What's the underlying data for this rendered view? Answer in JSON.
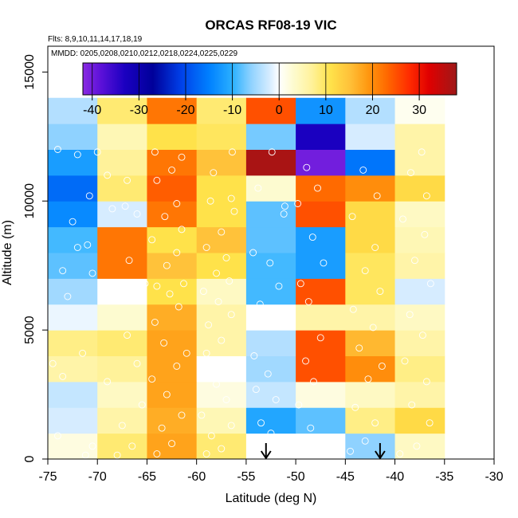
{
  "chart_data": {
    "type": "heatmap",
    "title": "ORCAS RF08-19 VIC",
    "subtitle_flights": "Flts: 8,9,10,11,14,17,18,19",
    "subtitle_dates": "MMDD: 0205,0208,0210,0212,0218,0224,0225,0229",
    "xlabel": "Latitude (deg N)",
    "ylabel": "Altitude (m)",
    "xlim": [
      -75,
      -30
    ],
    "ylim": [
      0,
      16000
    ],
    "x_ticks": [
      -75,
      -70,
      -65,
      -60,
      -55,
      -50,
      -45,
      -40,
      -35,
      -30
    ],
    "y_ticks": [
      0,
      5000,
      10000,
      15000
    ],
    "lat_bins": [
      -75,
      -70,
      -65,
      -60,
      -55,
      -50,
      -45,
      -40,
      -35
    ],
    "alt_bin_height": 1000,
    "grid": [
      [
        2,
        9,
        18,
        9,
        0,
        0,
        -6,
        4
      ],
      [
        -2,
        6,
        17,
        5,
        -11,
        -8,
        8,
        12
      ],
      [
        -3,
        4,
        18,
        2,
        -3,
        2,
        4,
        6
      ],
      [
        6,
        7,
        18,
        0,
        -5,
        25,
        20,
        8
      ],
      [
        8,
        9,
        18,
        6,
        -4,
        25,
        16,
        6
      ],
      [
        -1,
        3,
        17,
        6,
        0,
        6,
        6,
        4
      ],
      [
        -5,
        0,
        11,
        4,
        -9,
        25,
        10,
        -2
      ],
      [
        -8,
        22,
        15,
        11,
        -9,
        -12,
        10,
        6
      ],
      [
        -9,
        22,
        11,
        15,
        -8,
        -12,
        12,
        5
      ],
      [
        -14,
        -2,
        22,
        11,
        -8,
        25,
        12,
        4
      ],
      [
        -17,
        9,
        24,
        11,
        3,
        23,
        20,
        12
      ],
      [
        -12,
        7,
        22,
        15,
        37,
        -40,
        -16,
        6
      ],
      [
        -6,
        5,
        11,
        10,
        -7,
        -33,
        -2,
        6
      ],
      [
        -4,
        9,
        22,
        9,
        25,
        -13,
        -4,
        1
      ]
    ],
    "colorbar": {
      "min": -42,
      "max": 38,
      "ticks": [
        -40,
        -30,
        -20,
        -10,
        0,
        10,
        20,
        30
      ],
      "gridlines": [
        -40,
        -30,
        -20,
        -10,
        0,
        10,
        20,
        30
      ]
    },
    "colors": {
      "stops": [
        [
          -42,
          "#8a2be2"
        ],
        [
          -38,
          "#5a10d8"
        ],
        [
          -33,
          "#1a00c0"
        ],
        [
          -27,
          "#00009a"
        ],
        [
          -21,
          "#0040e8"
        ],
        [
          -15,
          "#0080ff"
        ],
        [
          -10,
          "#2ab0ff"
        ],
        [
          -6,
          "#8fd2ff"
        ],
        [
          -2,
          "#d6ecff"
        ],
        [
          0,
          "#ffffff"
        ],
        [
          3,
          "#fdfbd0"
        ],
        [
          7,
          "#fff29a"
        ],
        [
          11,
          "#ffe24a"
        ],
        [
          15,
          "#ffc23a"
        ],
        [
          19,
          "#ff9810"
        ],
        [
          23,
          "#ff6a00"
        ],
        [
          28,
          "#ff2a00"
        ],
        [
          32,
          "#e00000"
        ],
        [
          38,
          "#9e1818"
        ]
      ]
    },
    "markers": [
      {
        "lat": -53,
        "alt": 600,
        "label": "down-arrow"
      },
      {
        "lat": -41.5,
        "alt": 600,
        "label": "down-arrow"
      }
    ],
    "scatter_points": [
      [
        -74,
        900
      ],
      [
        -71.2,
        150
      ],
      [
        -70.5,
        500
      ],
      [
        -73.5,
        3200
      ],
      [
        -71.5,
        4100
      ],
      [
        -74.5,
        3700
      ],
      [
        -73,
        6300
      ],
      [
        -71,
        8300
      ],
      [
        -72,
        8200
      ],
      [
        -70.5,
        7200
      ],
      [
        -73.5,
        7300
      ],
      [
        -72.5,
        9200
      ],
      [
        -70.8,
        10200
      ],
      [
        -72,
        11800
      ],
      [
        -74,
        12000
      ],
      [
        -70,
        11900
      ],
      [
        -68,
        150
      ],
      [
        -66.5,
        500
      ],
      [
        -67.5,
        1300
      ],
      [
        -65.5,
        2100
      ],
      [
        -69,
        3000
      ],
      [
        -66,
        3700
      ],
      [
        -67,
        4800
      ],
      [
        -68.8,
        6700
      ],
      [
        -65.2,
        6800
      ],
      [
        -66.8,
        7700
      ],
      [
        -68.5,
        9700
      ],
      [
        -67.2,
        9800
      ],
      [
        -66,
        9500
      ],
      [
        -69,
        11000
      ],
      [
        -67,
        10800
      ],
      [
        -64,
        200
      ],
      [
        -62.5,
        600
      ],
      [
        -63.5,
        1200
      ],
      [
        -61.5,
        1700
      ],
      [
        -63,
        2500
      ],
      [
        -64.5,
        3100
      ],
      [
        -62,
        3600
      ],
      [
        -61,
        4100
      ],
      [
        -63.3,
        4500
      ],
      [
        -64.2,
        5300
      ],
      [
        -61.8,
        5900
      ],
      [
        -62.7,
        6400
      ],
      [
        -64,
        6700
      ],
      [
        -61.3,
        6800
      ],
      [
        -63,
        7500
      ],
      [
        -62,
        8000
      ],
      [
        -64.5,
        8500
      ],
      [
        -61.5,
        8900
      ],
      [
        -63.2,
        9400
      ],
      [
        -62,
        9900
      ],
      [
        -64,
        10800
      ],
      [
        -62.5,
        11200
      ],
      [
        -61.5,
        11700
      ],
      [
        -64.2,
        11900
      ],
      [
        -59,
        200
      ],
      [
        -57.5,
        400
      ],
      [
        -58.5,
        900
      ],
      [
        -56.5,
        1300
      ],
      [
        -59.5,
        1700
      ],
      [
        -57,
        2300
      ],
      [
        -58,
        2900
      ],
      [
        -56,
        3400
      ],
      [
        -59,
        4100
      ],
      [
        -57.5,
        4600
      ],
      [
        -58.8,
        5200
      ],
      [
        -56.5,
        5600
      ],
      [
        -57.8,
        6100
      ],
      [
        -59.3,
        6500
      ],
      [
        -56.7,
        6900
      ],
      [
        -58,
        7200
      ],
      [
        -57,
        7800
      ],
      [
        -59,
        8200
      ],
      [
        -57.5,
        8800
      ],
      [
        -56.2,
        9600
      ],
      [
        -58.6,
        10000
      ],
      [
        -56.5,
        10100
      ],
      [
        -58.3,
        11100
      ],
      [
        -56.4,
        11900
      ],
      [
        -54.5,
        400
      ],
      [
        -52.5,
        1000
      ],
      [
        -53.5,
        1400
      ],
      [
        -52,
        2300
      ],
      [
        -54,
        2700
      ],
      [
        -52.8,
        3300
      ],
      [
        -54.2,
        4000
      ],
      [
        -51.5,
        5200
      ],
      [
        -53.6,
        6000
      ],
      [
        -51.7,
        6700
      ],
      [
        -52.6,
        7600
      ],
      [
        -54.3,
        8000
      ],
      [
        -51.2,
        9500
      ],
      [
        -51.1,
        9800
      ],
      [
        -53.8,
        10500
      ],
      [
        -52.4,
        11900
      ],
      [
        -50,
        200
      ],
      [
        -49.3,
        500
      ],
      [
        -48.5,
        1200
      ],
      [
        -49.7,
        2100
      ],
      [
        -48.2,
        3000
      ],
      [
        -49,
        3800
      ],
      [
        -47.5,
        4700
      ],
      [
        -48.7,
        6100
      ],
      [
        -49.5,
        6800
      ],
      [
        -47.2,
        7600
      ],
      [
        -48.3,
        8600
      ],
      [
        -49.8,
        9900
      ],
      [
        -47.8,
        10500
      ],
      [
        -48.9,
        11300
      ],
      [
        -44.5,
        300
      ],
      [
        -43,
        700
      ],
      [
        -42,
        1400
      ],
      [
        -44,
        2000
      ],
      [
        -42.7,
        3100
      ],
      [
        -41.3,
        3600
      ],
      [
        -43.6,
        4300
      ],
      [
        -42.2,
        5100
      ],
      [
        -44.2,
        5800
      ],
      [
        -41.5,
        6500
      ],
      [
        -43,
        7300
      ],
      [
        -42,
        8200
      ],
      [
        -44.3,
        9400
      ],
      [
        -41.8,
        10200
      ],
      [
        -43.2,
        11200
      ],
      [
        -39.5,
        200
      ],
      [
        -37.8,
        500
      ],
      [
        -36.5,
        1400
      ],
      [
        -38.3,
        2100
      ],
      [
        -36.8,
        3000
      ],
      [
        -39,
        3800
      ],
      [
        -37.2,
        4800
      ],
      [
        -38.5,
        5600
      ],
      [
        -36.4,
        6800
      ],
      [
        -38,
        7700
      ],
      [
        -37,
        8700
      ],
      [
        -39.2,
        9300
      ],
      [
        -36.8,
        10200
      ],
      [
        -38.4,
        11100
      ],
      [
        -37.3,
        11900
      ]
    ]
  }
}
